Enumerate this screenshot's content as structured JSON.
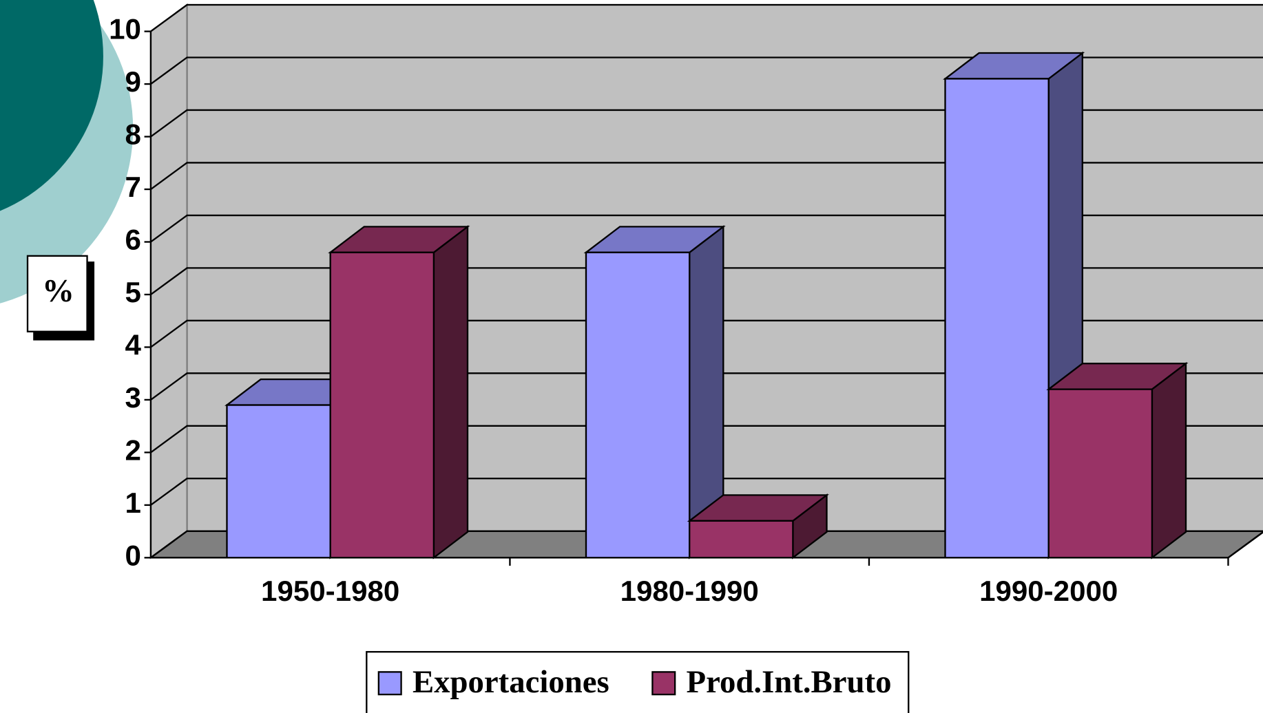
{
  "chart_data": {
    "type": "bar3d",
    "y_label": "%",
    "categories": [
      "1950-1980",
      "1980-1990",
      "1990-2000"
    ],
    "series": [
      {
        "name": "Exportaciones",
        "color": "#9999ff",
        "values": [
          2.9,
          5.8,
          9.1
        ]
      },
      {
        "name": "Prod.Int.Bruto",
        "color": "#993366",
        "values": [
          5.8,
          0.7,
          3.2
        ]
      }
    ],
    "ylim": [
      0,
      10
    ],
    "yticks": [
      0,
      1,
      2,
      3,
      4,
      5,
      6,
      7,
      8,
      9,
      10
    ],
    "grid": true
  }
}
